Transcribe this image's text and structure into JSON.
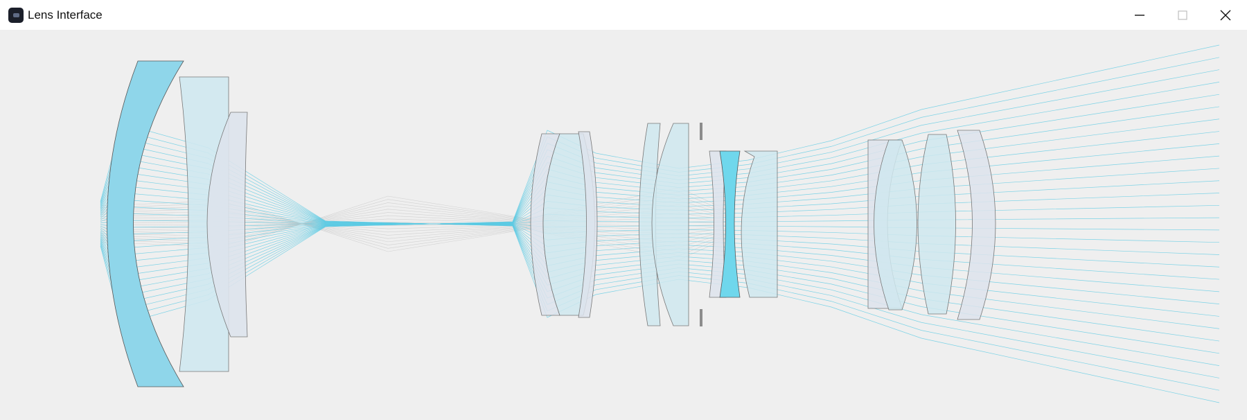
{
  "window": {
    "title": "Lens Interface",
    "icon": "app-icon",
    "controls": [
      "minimize-icon",
      "maximize-icon",
      "close-icon"
    ]
  },
  "colors": {
    "background": "#efefef",
    "ray": "#5ccbe4",
    "ray_gray": "#c9c9c9",
    "lens_blue": "#8fd6ea",
    "lens_light": "#cfe8ef",
    "lens_gray": "#dde3ec",
    "lens_cyan": "#6fd7ec",
    "stop": "#8c8c8c",
    "outline": "#555555"
  }
}
